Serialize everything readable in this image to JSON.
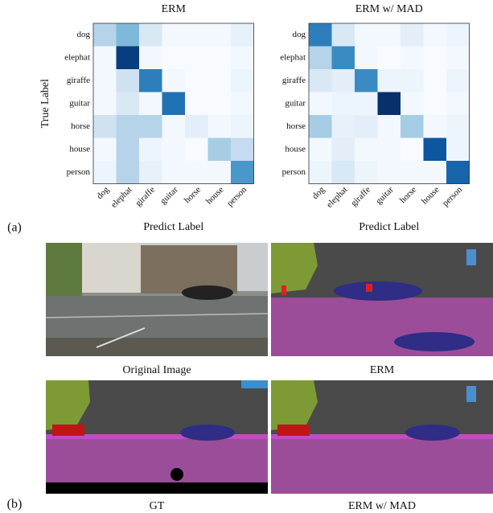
{
  "chart_data": [
    {
      "type": "heatmap",
      "title": "ERM",
      "xlabel": "Predict Label",
      "ylabel": "True Label",
      "x_categories": [
        "dog",
        "elephat",
        "giraffe",
        "guitar",
        "horse",
        "house",
        "person"
      ],
      "y_categories": [
        "dog",
        "elephat",
        "giraffe",
        "guitar",
        "horse",
        "house",
        "person"
      ],
      "values": [
        [
          0.3,
          0.45,
          0.15,
          0.02,
          0.02,
          0.02,
          0.08
        ],
        [
          0.02,
          0.95,
          0.02,
          0.0,
          0.0,
          0.0,
          0.02
        ],
        [
          0.02,
          0.2,
          0.7,
          0.02,
          0.0,
          0.0,
          0.05
        ],
        [
          0.02,
          0.15,
          0.02,
          0.75,
          0.0,
          0.0,
          0.02
        ],
        [
          0.2,
          0.3,
          0.3,
          0.02,
          0.1,
          0.02,
          0.05
        ],
        [
          0.02,
          0.3,
          0.05,
          0.02,
          0.0,
          0.35,
          0.25
        ],
        [
          0.05,
          0.3,
          0.08,
          0.02,
          0.02,
          0.02,
          0.6
        ]
      ],
      "colormap": "Blues",
      "clim": [
        0,
        1
      ]
    },
    {
      "type": "heatmap",
      "title": "ERM w/ MAD",
      "xlabel": "Predict Label",
      "x_categories": [
        "dog",
        "elephat",
        "giraffe",
        "guitar",
        "horse",
        "house",
        "person"
      ],
      "y_categories": [
        "dog",
        "elephat",
        "giraffe",
        "guitar",
        "horse",
        "house",
        "person"
      ],
      "values": [
        [
          0.7,
          0.15,
          0.02,
          0.02,
          0.1,
          0.02,
          0.05
        ],
        [
          0.3,
          0.65,
          0.02,
          0.0,
          0.02,
          0.0,
          0.02
        ],
        [
          0.15,
          0.1,
          0.65,
          0.05,
          0.05,
          0.0,
          0.05
        ],
        [
          0.02,
          0.05,
          0.05,
          1.0,
          0.02,
          0.0,
          0.02
        ],
        [
          0.35,
          0.08,
          0.1,
          0.02,
          0.35,
          0.02,
          0.05
        ],
        [
          0.02,
          0.1,
          0.02,
          0.02,
          0.0,
          0.85,
          0.05
        ],
        [
          0.05,
          0.15,
          0.05,
          0.02,
          0.02,
          0.02,
          0.8
        ]
      ],
      "colormap": "Blues",
      "clim": [
        0,
        1
      ]
    }
  ],
  "figure": {
    "panel_a": "(a)",
    "panel_b": "(b)",
    "captions": [
      "Original Image",
      "ERM",
      "GT",
      "ERM w/ MAD"
    ]
  }
}
